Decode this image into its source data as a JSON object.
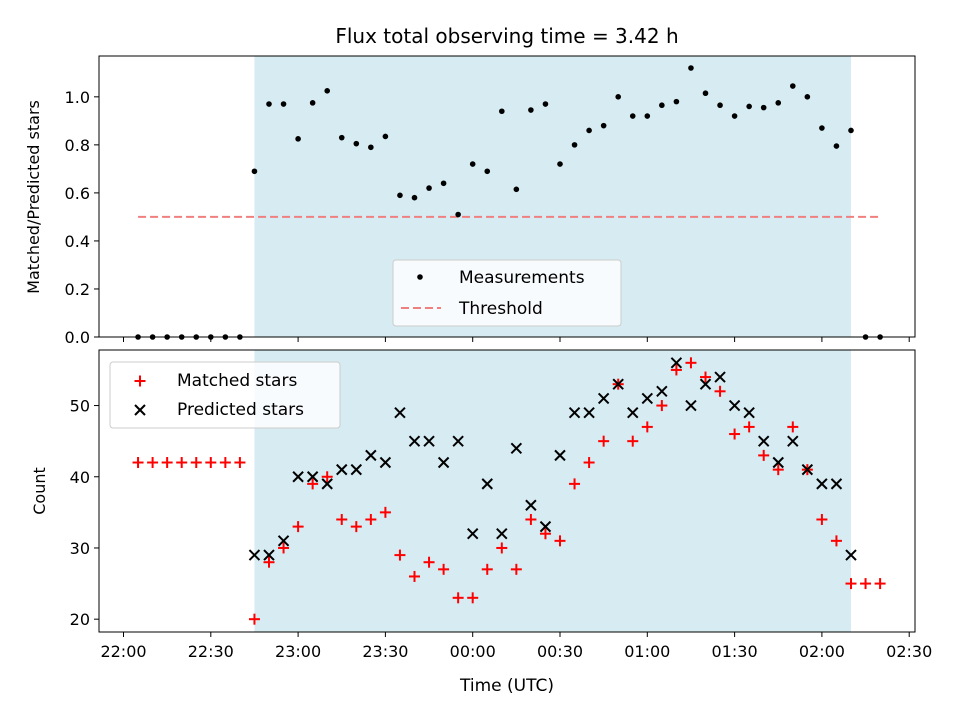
{
  "chart_data": [
    {
      "type": "scatter",
      "title": "Flux total observing time = 3.42 h",
      "xlabel": "",
      "ylabel": "Matched/Predicted stars",
      "ylim": [
        0,
        1.17
      ],
      "yticks": [
        "0.0",
        "0.2",
        "0.4",
        "0.6",
        "0.8",
        "1.0"
      ],
      "shaded_region": [
        "22:45",
        "02:10"
      ],
      "legend_position": "lower center",
      "series": [
        {
          "name": "Measurements",
          "marker": "dot",
          "color": "#000000",
          "x": [
            "22:05",
            "22:10",
            "22:15",
            "22:20",
            "22:25",
            "22:30",
            "22:35",
            "22:40",
            "22:45",
            "22:50",
            "22:55",
            "23:00",
            "23:05",
            "23:10",
            "23:15",
            "23:20",
            "23:25",
            "23:30",
            "23:35",
            "23:40",
            "23:45",
            "23:50",
            "23:55",
            "00:00",
            "00:05",
            "00:10",
            "00:15",
            "00:20",
            "00:25",
            "00:30",
            "00:35",
            "00:40",
            "00:45",
            "00:50",
            "00:55",
            "01:00",
            "01:05",
            "01:10",
            "01:15",
            "01:20",
            "01:25",
            "01:30",
            "01:35",
            "01:40",
            "01:45",
            "01:50",
            "01:55",
            "02:00",
            "02:05",
            "02:10",
            "02:15",
            "02:20"
          ],
          "values": [
            0,
            0,
            0,
            0,
            0,
            0,
            0,
            0,
            0.69,
            0.97,
            0.97,
            0.825,
            0.975,
            1.025,
            0.83,
            0.805,
            0.79,
            0.835,
            0.59,
            0.58,
            0.62,
            0.64,
            0.51,
            0.72,
            0.69,
            0.94,
            0.615,
            0.945,
            0.97,
            0.72,
            0.8,
            0.86,
            0.88,
            1.0,
            0.92,
            0.92,
            0.965,
            0.98,
            1.12,
            1.015,
            0.965,
            0.92,
            0.96,
            0.955,
            0.975,
            1.045,
            1.0,
            0.87,
            0.795,
            0.86,
            0,
            0
          ]
        },
        {
          "name": "Threshold",
          "marker": "dashed-line",
          "color": "#f08080",
          "x": [
            "22:05",
            "02:20"
          ],
          "values": [
            0.5,
            0.5
          ]
        }
      ]
    },
    {
      "type": "scatter",
      "title": "",
      "xlabel": "Time (UTC)",
      "ylabel": "Count",
      "ylim": [
        18.2,
        57.8
      ],
      "yticks": [
        "20",
        "30",
        "40",
        "50"
      ],
      "xticks": [
        "22:00",
        "22:30",
        "23:00",
        "23:30",
        "00:00",
        "00:30",
        "01:00",
        "01:30",
        "02:00",
        "02:30"
      ],
      "shaded_region": [
        "22:45",
        "02:10"
      ],
      "legend_position": "upper left",
      "series": [
        {
          "name": "Matched stars",
          "marker": "plus",
          "color": "#ff0000",
          "x": [
            "22:05",
            "22:10",
            "22:15",
            "22:20",
            "22:25",
            "22:30",
            "22:35",
            "22:40",
            "22:45",
            "22:50",
            "22:55",
            "23:00",
            "23:05",
            "23:10",
            "23:15",
            "23:20",
            "23:25",
            "23:30",
            "23:35",
            "23:40",
            "23:45",
            "23:50",
            "23:55",
            "00:00",
            "00:05",
            "00:10",
            "00:15",
            "00:20",
            "00:25",
            "00:30",
            "00:35",
            "00:40",
            "00:45",
            "00:50",
            "00:55",
            "01:00",
            "01:05",
            "01:10",
            "01:15",
            "01:20",
            "01:25",
            "01:30",
            "01:35",
            "01:40",
            "01:45",
            "01:50",
            "01:55",
            "02:00",
            "02:05",
            "02:10",
            "02:15",
            "02:20"
          ],
          "values": [
            42,
            42,
            42,
            42,
            42,
            42,
            42,
            42,
            20,
            28,
            30,
            33,
            39,
            40,
            34,
            33,
            34,
            35,
            29,
            26,
            28,
            27,
            23,
            23,
            27,
            30,
            27,
            34,
            32,
            31,
            39,
            42,
            45,
            53,
            45,
            47,
            50,
            55,
            56,
            54,
            52,
            46,
            47,
            43,
            41,
            47,
            41,
            34,
            31,
            25,
            25,
            25
          ]
        },
        {
          "name": "Predicted stars",
          "marker": "x",
          "color": "#000000",
          "x": [
            "22:45",
            "22:50",
            "22:55",
            "23:00",
            "23:05",
            "23:10",
            "23:15",
            "23:20",
            "23:25",
            "23:30",
            "23:35",
            "23:40",
            "23:45",
            "23:50",
            "23:55",
            "00:00",
            "00:05",
            "00:10",
            "00:15",
            "00:20",
            "00:25",
            "00:30",
            "00:35",
            "00:40",
            "00:45",
            "00:50",
            "00:55",
            "01:00",
            "01:05",
            "01:10",
            "01:15",
            "01:20",
            "01:25",
            "01:30",
            "01:35",
            "01:40",
            "01:45",
            "01:50",
            "01:55",
            "02:00",
            "02:05",
            "02:10"
          ],
          "values": [
            29,
            29,
            31,
            40,
            40,
            39,
            41,
            41,
            43,
            42,
            49,
            45,
            45,
            42,
            45,
            32,
            39,
            32,
            44,
            36,
            33,
            43,
            49,
            49,
            51,
            53,
            49,
            51,
            52,
            56,
            50,
            53,
            54,
            50,
            49,
            45,
            42,
            45,
            41,
            39,
            39,
            29
          ]
        }
      ]
    }
  ],
  "colors": {
    "shade": "#add8e6",
    "shade_opacity": 0.5,
    "threshold": "#f08080",
    "matched": "#ff0000",
    "predicted": "#000000"
  }
}
